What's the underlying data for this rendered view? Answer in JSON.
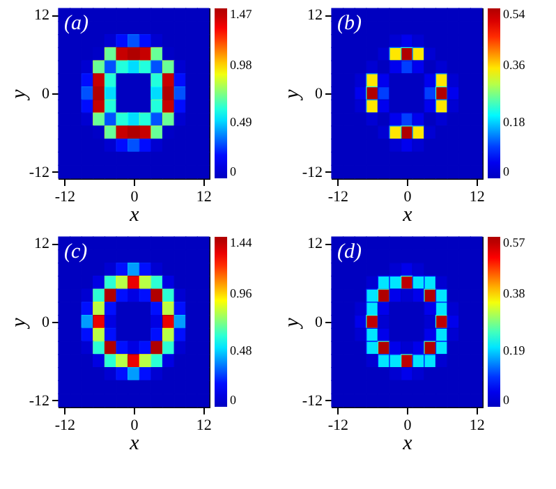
{
  "chart_data": [
    {
      "type": "heatmap",
      "annotations": [
        "(a)"
      ],
      "xlabel": "x",
      "ylabel": "y",
      "clim": [
        0,
        1.47
      ],
      "cticks": [
        0,
        0.49,
        0.98,
        1.47
      ],
      "categories": [
        "-12",
        null,
        null,
        null,
        null,
        null,
        "0",
        null,
        null,
        null,
        null,
        null,
        "12"
      ],
      "y_categories": [
        "12",
        null,
        null,
        null,
        null,
        null,
        "0",
        null,
        null,
        null,
        null,
        null,
        "-12"
      ],
      "cells": [
        [
          0,
          0,
          0,
          0,
          0,
          0,
          0,
          0,
          0,
          0,
          0,
          0,
          0
        ],
        [
          0,
          0,
          0,
          0,
          0,
          0,
          0,
          0,
          0,
          0,
          0,
          0,
          0
        ],
        [
          0,
          0,
          0,
          0,
          0.05,
          0.2,
          0.3,
          0.2,
          0.05,
          0,
          0,
          0,
          0
        ],
        [
          0,
          0,
          0,
          0.02,
          0.7,
          1.4,
          1.45,
          1.4,
          0.7,
          0.02,
          0,
          0,
          0
        ],
        [
          0,
          0,
          0.05,
          0.7,
          0.3,
          0.6,
          0.5,
          0.6,
          0.3,
          0.7,
          0.05,
          0,
          0
        ],
        [
          0,
          0,
          0.2,
          1.4,
          0.6,
          0,
          0,
          0,
          0.6,
          1.4,
          0.2,
          0,
          0
        ],
        [
          0,
          0,
          0.3,
          1.45,
          0.5,
          0,
          0,
          0,
          0.5,
          1.45,
          0.3,
          0,
          0
        ],
        [
          0,
          0,
          0.2,
          1.4,
          0.6,
          0,
          0,
          0,
          0.6,
          1.4,
          0.2,
          0,
          0
        ],
        [
          0,
          0,
          0.05,
          0.7,
          0.3,
          0.6,
          0.5,
          0.6,
          0.3,
          0.7,
          0.05,
          0,
          0
        ],
        [
          0,
          0,
          0,
          0.02,
          0.7,
          1.4,
          1.45,
          1.4,
          0.7,
          0.02,
          0,
          0,
          0
        ],
        [
          0,
          0,
          0,
          0,
          0.05,
          0.2,
          0.3,
          0.2,
          0.05,
          0,
          0,
          0,
          0
        ],
        [
          0,
          0,
          0,
          0,
          0,
          0,
          0,
          0,
          0,
          0,
          0,
          0,
          0
        ],
        [
          0,
          0,
          0,
          0,
          0,
          0,
          0,
          0,
          0,
          0,
          0,
          0,
          0
        ]
      ]
    },
    {
      "type": "heatmap",
      "annotations": [
        "(b)"
      ],
      "xlabel": "x",
      "ylabel": "y",
      "clim": [
        0,
        0.54
      ],
      "cticks": [
        0,
        0.18,
        0.36,
        0.54
      ],
      "categories": [
        "-12",
        null,
        null,
        null,
        null,
        null,
        "0",
        null,
        null,
        null,
        null,
        null,
        "12"
      ],
      "y_categories": [
        "12",
        null,
        null,
        null,
        null,
        null,
        "0",
        null,
        null,
        null,
        null,
        null,
        "-12"
      ],
      "cells": [
        [
          0,
          0,
          0,
          0,
          0,
          0,
          0,
          0,
          0,
          0,
          0,
          0,
          0
        ],
        [
          0,
          0,
          0,
          0,
          0,
          0,
          0,
          0,
          0,
          0,
          0,
          0,
          0
        ],
        [
          0,
          0,
          0,
          0,
          0,
          0.02,
          0.05,
          0.02,
          0,
          0,
          0,
          0,
          0
        ],
        [
          0,
          0,
          0,
          0,
          0.02,
          0.35,
          0.54,
          0.35,
          0.02,
          0,
          0,
          0,
          0
        ],
        [
          0,
          0,
          0,
          0.02,
          0,
          0.05,
          0.1,
          0.05,
          0,
          0.02,
          0,
          0,
          0
        ],
        [
          0,
          0,
          0.02,
          0.35,
          0.05,
          0,
          0,
          0,
          0.05,
          0.35,
          0.02,
          0,
          0
        ],
        [
          0,
          0,
          0.05,
          0.54,
          0.1,
          0,
          0,
          0,
          0.1,
          0.54,
          0.05,
          0,
          0
        ],
        [
          0,
          0,
          0.02,
          0.35,
          0.05,
          0,
          0,
          0,
          0.05,
          0.35,
          0.02,
          0,
          0
        ],
        [
          0,
          0,
          0,
          0.02,
          0,
          0.05,
          0.1,
          0.05,
          0,
          0.02,
          0,
          0,
          0
        ],
        [
          0,
          0,
          0,
          0,
          0.02,
          0.35,
          0.54,
          0.35,
          0.02,
          0,
          0,
          0,
          0
        ],
        [
          0,
          0,
          0,
          0,
          0,
          0.02,
          0.05,
          0.02,
          0,
          0,
          0,
          0,
          0
        ],
        [
          0,
          0,
          0,
          0,
          0,
          0,
          0,
          0,
          0,
          0,
          0,
          0,
          0
        ],
        [
          0,
          0,
          0,
          0,
          0,
          0,
          0,
          0,
          0,
          0,
          0,
          0,
          0
        ]
      ]
    },
    {
      "type": "heatmap",
      "annotations": [
        "(c)"
      ],
      "xlabel": "x",
      "ylabel": "y",
      "clim": [
        0,
        1.44
      ],
      "cticks": [
        0,
        0.48,
        0.96,
        1.44
      ],
      "categories": [
        "-12",
        null,
        null,
        null,
        null,
        null,
        "0",
        null,
        null,
        null,
        null,
        null,
        "12"
      ],
      "y_categories": [
        "12",
        null,
        null,
        null,
        null,
        null,
        "0",
        null,
        null,
        null,
        null,
        null,
        "-12"
      ],
      "cells": [
        [
          0,
          0,
          0,
          0,
          0,
          0,
          0,
          0,
          0,
          0,
          0,
          0,
          0
        ],
        [
          0,
          0,
          0,
          0,
          0,
          0,
          0,
          0,
          0,
          0,
          0,
          0,
          0
        ],
        [
          0,
          0,
          0,
          0,
          0.05,
          0.2,
          0.4,
          0.2,
          0.05,
          0,
          0,
          0,
          0
        ],
        [
          0,
          0,
          0,
          0.1,
          0.6,
          0.8,
          1.3,
          0.8,
          0.6,
          0.1,
          0,
          0,
          0
        ],
        [
          0,
          0,
          0.05,
          0.6,
          1.44,
          0.2,
          0.1,
          0.2,
          1.44,
          0.6,
          0.05,
          0,
          0
        ],
        [
          0,
          0,
          0.2,
          0.8,
          0.2,
          0,
          0,
          0,
          0.2,
          0.8,
          0.2,
          0,
          0
        ],
        [
          0,
          0,
          0.4,
          1.3,
          0.1,
          0,
          0,
          0,
          0.1,
          1.3,
          0.4,
          0,
          0
        ],
        [
          0,
          0,
          0.2,
          0.8,
          0.2,
          0,
          0,
          0,
          0.2,
          0.8,
          0.2,
          0,
          0
        ],
        [
          0,
          0,
          0.05,
          0.6,
          1.44,
          0.2,
          0.1,
          0.2,
          1.44,
          0.6,
          0.05,
          0,
          0
        ],
        [
          0,
          0,
          0,
          0.1,
          0.6,
          0.8,
          1.3,
          0.8,
          0.6,
          0.1,
          0,
          0,
          0
        ],
        [
          0,
          0,
          0,
          0,
          0.05,
          0.2,
          0.4,
          0.2,
          0.05,
          0,
          0,
          0,
          0
        ],
        [
          0,
          0,
          0,
          0,
          0,
          0,
          0,
          0,
          0,
          0,
          0,
          0,
          0
        ],
        [
          0,
          0,
          0,
          0,
          0,
          0,
          0,
          0,
          0,
          0,
          0,
          0,
          0
        ]
      ]
    },
    {
      "type": "heatmap",
      "annotations": [
        "(d)"
      ],
      "xlabel": "x",
      "ylabel": "y",
      "clim": [
        0,
        0.57
      ],
      "cticks": [
        0,
        0.19,
        0.38,
        0.57
      ],
      "categories": [
        "-12",
        null,
        null,
        null,
        null,
        null,
        "0",
        null,
        null,
        null,
        null,
        null,
        "12"
      ],
      "y_categories": [
        "12",
        null,
        null,
        null,
        null,
        null,
        "0",
        null,
        null,
        null,
        null,
        null,
        "-12"
      ],
      "cells": [
        [
          0,
          0,
          0,
          0,
          0,
          0,
          0,
          0,
          0,
          0,
          0,
          0,
          0
        ],
        [
          0,
          0,
          0,
          0,
          0,
          0,
          0,
          0,
          0,
          0,
          0,
          0,
          0
        ],
        [
          0,
          0,
          0,
          0,
          0,
          0.02,
          0.05,
          0.02,
          0,
          0,
          0,
          0,
          0
        ],
        [
          0,
          0,
          0,
          0.02,
          0.2,
          0.2,
          0.55,
          0.2,
          0.2,
          0.02,
          0,
          0,
          0
        ],
        [
          0,
          0,
          0,
          0.2,
          0.57,
          0.05,
          0.02,
          0.05,
          0.57,
          0.2,
          0,
          0,
          0
        ],
        [
          0,
          0,
          0.02,
          0.2,
          0.05,
          0,
          0,
          0,
          0.05,
          0.2,
          0.02,
          0,
          0
        ],
        [
          0,
          0,
          0.05,
          0.55,
          0.02,
          0,
          0,
          0,
          0.02,
          0.55,
          0.05,
          0,
          0
        ],
        [
          0,
          0,
          0.02,
          0.2,
          0.05,
          0,
          0,
          0,
          0.05,
          0.2,
          0.02,
          0,
          0
        ],
        [
          0,
          0,
          0,
          0.2,
          0.57,
          0.05,
          0.02,
          0.05,
          0.57,
          0.2,
          0,
          0,
          0
        ],
        [
          0,
          0,
          0,
          0.02,
          0.2,
          0.2,
          0.55,
          0.2,
          0.2,
          0.02,
          0,
          0,
          0
        ],
        [
          0,
          0,
          0,
          0,
          0,
          0.02,
          0.05,
          0.02,
          0,
          0,
          0,
          0,
          0
        ],
        [
          0,
          0,
          0,
          0,
          0,
          0,
          0,
          0,
          0,
          0,
          0,
          0,
          0
        ],
        [
          0,
          0,
          0,
          0,
          0,
          0,
          0,
          0,
          0,
          0,
          0,
          0,
          0
        ]
      ]
    }
  ]
}
